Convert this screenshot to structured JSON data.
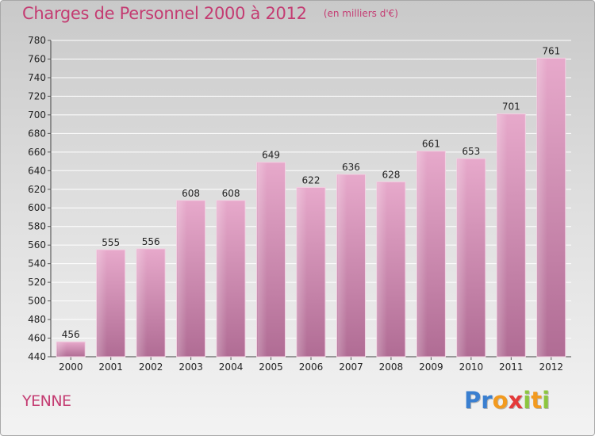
{
  "chart_data": {
    "type": "bar",
    "title": "Charges de Personnel 2000 à 2012",
    "subtitle": "(en milliers d'€)",
    "xlabel": "",
    "ylabel": "",
    "categories": [
      "2000",
      "2001",
      "2002",
      "2003",
      "2004",
      "2005",
      "2006",
      "2007",
      "2008",
      "2009",
      "2010",
      "2011",
      "2012"
    ],
    "values": [
      456,
      555,
      556,
      608,
      608,
      649,
      622,
      636,
      628,
      661,
      653,
      701,
      761
    ],
    "ylim": [
      440,
      780
    ],
    "yticks": [
      440,
      460,
      480,
      500,
      520,
      540,
      560,
      580,
      600,
      620,
      640,
      660,
      680,
      700,
      720,
      740,
      760,
      780
    ],
    "grid": true,
    "bar_color": "#d88fb8"
  },
  "footer": {
    "place": "YENNE",
    "logo_letters": [
      {
        "ch": "P",
        "color": "#3a7fd0"
      },
      {
        "ch": "r",
        "color": "#3a7fd0"
      },
      {
        "ch": "o",
        "color": "#f29a1f"
      },
      {
        "ch": "x",
        "color": "#e43a3a"
      },
      {
        "ch": "i",
        "color": "#8cc63f"
      },
      {
        "ch": "t",
        "color": "#f29a1f"
      },
      {
        "ch": "i",
        "color": "#8cc63f"
      }
    ]
  }
}
